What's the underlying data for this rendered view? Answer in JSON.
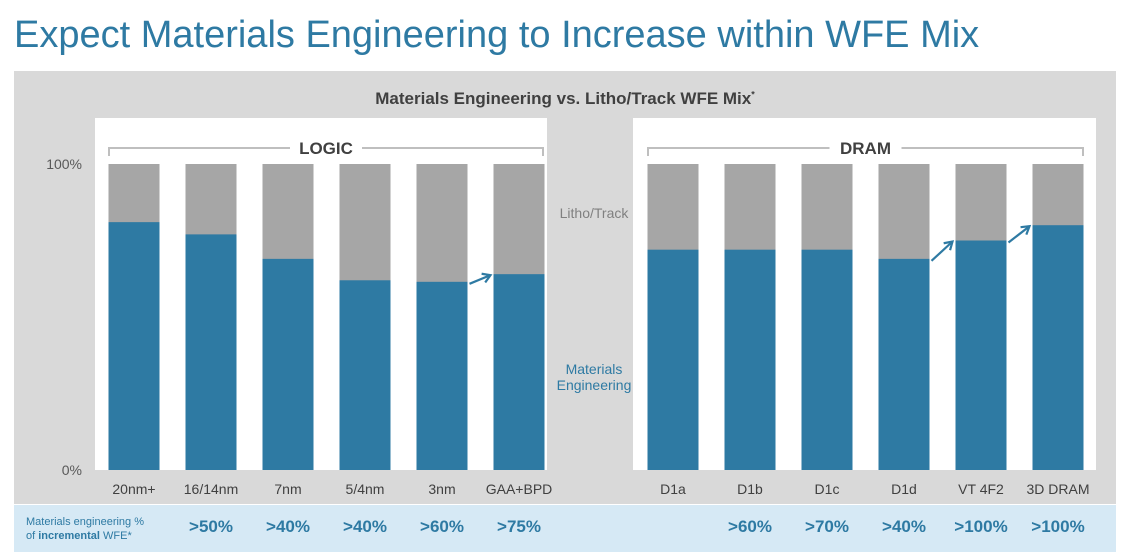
{
  "slide_title": "Expect Materials Engineering to Increase within WFE Mix",
  "chart_title": "Materials Engineering vs. Litho/Track WFE Mix",
  "chart_title_mark": "*",
  "colors": {
    "materials": "#2e7aa3",
    "litho": "#a6a6a6",
    "title": "#2e7aa3"
  },
  "chart_data": {
    "type": "bar",
    "stacked": true,
    "title": "Materials Engineering vs. Litho/Track WFE Mix*",
    "yticks": [
      "100%",
      "0%"
    ],
    "ylim": [
      0,
      100
    ],
    "groups": [
      "LOGIC",
      "DRAM"
    ],
    "categories": [
      "20nm+",
      "16/14nm",
      "7nm",
      "5/4nm",
      "3nm",
      "GAA+BPD",
      "D1a",
      "D1b",
      "D1c",
      "D1d",
      "VT 4F2",
      "3D DRAM"
    ],
    "group_of_category": [
      "LOGIC",
      "LOGIC",
      "LOGIC",
      "LOGIC",
      "LOGIC",
      "LOGIC",
      "DRAM",
      "DRAM",
      "DRAM",
      "DRAM",
      "DRAM",
      "DRAM"
    ],
    "series": [
      {
        "name": "Materials Engineering",
        "values": [
          81,
          77,
          69,
          62,
          61.5,
          64,
          72,
          72,
          72,
          69,
          75,
          80
        ]
      },
      {
        "name": "Litho/Track",
        "values": [
          19,
          23,
          31,
          38,
          38.5,
          36,
          28,
          28,
          28,
          31,
          25,
          20
        ]
      }
    ],
    "series_labels": {
      "litho": "Litho/Track",
      "materials_line1": "Materials",
      "materials_line2": "Engineering"
    },
    "arrows": [
      [
        4,
        5
      ],
      [
        9,
        10
      ],
      [
        10,
        11
      ]
    ],
    "incremental_label_line1": "Materials engineering %",
    "incremental_label_line2_prefix": "of ",
    "incremental_label_line2_bold": "incremental",
    "incremental_label_line2_suffix": " WFE*",
    "incremental_values": [
      ">50%",
      ">40%",
      ">40%",
      ">60%",
      ">75%",
      "",
      ">60%",
      ">70%",
      ">40%",
      ">100%",
      ">100%"
    ]
  }
}
